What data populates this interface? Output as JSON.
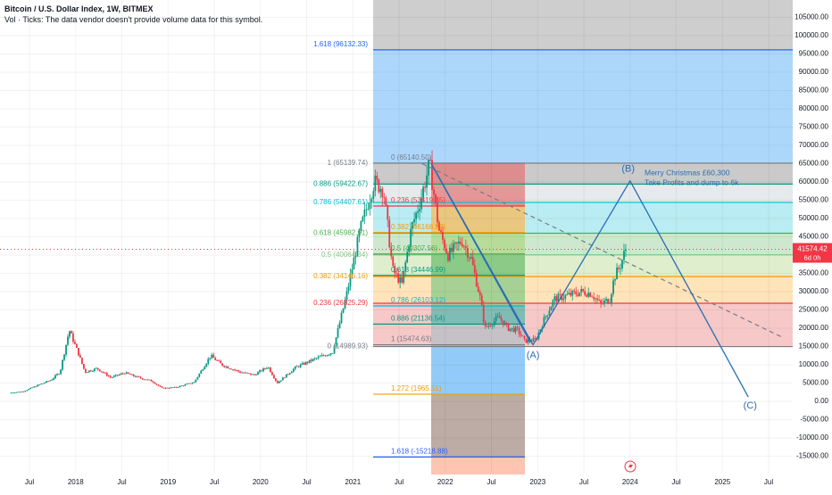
{
  "header": {
    "title": "Bitcoin / U.S. Dollar Index, 1W, BITMEX",
    "volume_note": "Vol · Ticks: The data vendor doesn't provide volume data for this symbol."
  },
  "price_badge": {
    "price": "41574.42",
    "countdown": "6d 0h",
    "color": "#f23645"
  },
  "annotations": {
    "b_label": "(B)",
    "a_label": "(A)",
    "c_label": "(C)",
    "note_line1": "Merry Christmas £60,300",
    "note_line2": "Take Profits and dump to 6k"
  },
  "fib_left": [
    {
      "label": "1.618 (96132.33)",
      "price": 96132.33,
      "color": "#2962ff"
    },
    {
      "label": "1 (65139.74)",
      "price": 65139.74,
      "color": "#787b86"
    },
    {
      "label": "0.886 (59422.67)",
      "price": 59422.67,
      "color": "#089981"
    },
    {
      "label": "0.786 (54407.61)",
      "price": 54407.61,
      "color": "#00bcd4"
    },
    {
      "label": "0.618 (45982.51)",
      "price": 45982.51,
      "color": "#4caf50"
    },
    {
      "label": "0.5 (40064.34)",
      "price": 40064.34,
      "color": "#81c784"
    },
    {
      "label": "0.382 (34146.16)",
      "price": 34146.16,
      "color": "#ff9800"
    },
    {
      "label": "0.236 (26825.29)",
      "price": 26825.29,
      "color": "#f23645"
    },
    {
      "label": "0 (14989.93)",
      "price": 14989.93,
      "color": "#787b86"
    }
  ],
  "fib_right": [
    {
      "label": "0 (65140.50)",
      "price": 65140.5,
      "color": "#787b86"
    },
    {
      "label": "0.236 (53419.35)",
      "price": 53419.35,
      "color": "#f23645"
    },
    {
      "label": "0.382 (46168.97)",
      "price": 46168.97,
      "color": "#ff9800"
    },
    {
      "label": "0.5 (40307.56)",
      "price": 40307.56,
      "color": "#4caf50"
    },
    {
      "label": "0.618 (34446.99)",
      "price": 34446.99,
      "color": "#089981"
    },
    {
      "label": "0.786 (26103.12)",
      "price": 26103.12,
      "color": "#00bcd4"
    },
    {
      "label": "0.886 (21136.54)",
      "price": 21136.54,
      "color": "#089981"
    },
    {
      "label": "1 (15474.63)",
      "price": 15474.63,
      "color": "#787b86"
    },
    {
      "label": "1.272 (1965.51)",
      "price": 1965.51,
      "color": "#ff9800"
    },
    {
      "label": "1.618 (-15218.88)",
      "price": -15218.88,
      "color": "#2962ff"
    }
  ],
  "chart_data": {
    "type": "candlestick",
    "title": "Bitcoin / U.S. Dollar Index, 1W, BITMEX",
    "ylim": [
      -18000,
      110000
    ],
    "y_ticks": [
      105000,
      100000,
      95000,
      90000,
      85000,
      80000,
      75000,
      70000,
      65000,
      60000,
      55000,
      50000,
      45000,
      40000,
      35000,
      30000,
      25000,
      20000,
      15000,
      10000,
      5000,
      0,
      -5000,
      -10000,
      -15000
    ],
    "y_tick_labels": [
      "105000.00",
      "100000.00",
      "95000.00",
      "90000.00",
      "85000.00",
      "80000.00",
      "75000.00",
      "70000.00",
      "65000.00",
      "60000.00",
      "55000.00",
      "50000.00",
      "45000.00",
      "40000.00",
      "35000.00",
      "30000.00",
      "25000.00",
      "20000.00",
      "15000.00",
      "10000.00",
      "5000.00",
      "0.00",
      "-5000.00",
      "-10000.00",
      "-15000.00"
    ],
    "x_range": [
      2017.3,
      2025.85
    ],
    "x_ticks": [
      {
        "t": 2017.5,
        "label": "Jul"
      },
      {
        "t": 2018.0,
        "label": "2018"
      },
      {
        "t": 2018.5,
        "label": "Jul"
      },
      {
        "t": 2019.0,
        "label": "2019"
      },
      {
        "t": 2019.5,
        "label": "Jul"
      },
      {
        "t": 2020.0,
        "label": "2020"
      },
      {
        "t": 2020.5,
        "label": "Jul"
      },
      {
        "t": 2021.0,
        "label": "2021"
      },
      {
        "t": 2021.5,
        "label": "Jul"
      },
      {
        "t": 2022.0,
        "label": "2022"
      },
      {
        "t": 2022.5,
        "label": "Jul"
      },
      {
        "t": 2023.0,
        "label": "2023"
      },
      {
        "t": 2023.5,
        "label": "Jul"
      },
      {
        "t": 2024.0,
        "label": "2024"
      },
      {
        "t": 2024.5,
        "label": "Jul"
      },
      {
        "t": 2025.0,
        "label": "2025"
      },
      {
        "t": 2025.5,
        "label": "Jul"
      }
    ],
    "price_path": [
      [
        2017.3,
        2300
      ],
      [
        2017.45,
        2700
      ],
      [
        2017.6,
        4300
      ],
      [
        2017.75,
        5800
      ],
      [
        2017.85,
        8000
      ],
      [
        2017.95,
        19500
      ],
      [
        2018.05,
        13000
      ],
      [
        2018.12,
        8000
      ],
      [
        2018.25,
        9000
      ],
      [
        2018.4,
        6500
      ],
      [
        2018.55,
        7800
      ],
      [
        2018.7,
        6500
      ],
      [
        2018.85,
        5500
      ],
      [
        2018.95,
        3600
      ],
      [
        2019.1,
        3800
      ],
      [
        2019.3,
        5200
      ],
      [
        2019.48,
        12500
      ],
      [
        2019.6,
        10000
      ],
      [
        2019.8,
        8000
      ],
      [
        2019.95,
        7200
      ],
      [
        2020.1,
        9500
      ],
      [
        2020.2,
        5000
      ],
      [
        2020.4,
        9300
      ],
      [
        2020.6,
        11500
      ],
      [
        2020.8,
        13500
      ],
      [
        2020.95,
        29000
      ],
      [
        2021.1,
        47000
      ],
      [
        2021.25,
        60000
      ],
      [
        2021.35,
        58000
      ],
      [
        2021.45,
        36000
      ],
      [
        2021.55,
        32000
      ],
      [
        2021.65,
        47000
      ],
      [
        2021.75,
        55000
      ],
      [
        2021.85,
        65000
      ],
      [
        2021.95,
        47000
      ],
      [
        2022.05,
        40000
      ],
      [
        2022.2,
        44000
      ],
      [
        2022.3,
        39000
      ],
      [
        2022.4,
        28000
      ],
      [
        2022.45,
        20000
      ],
      [
        2022.6,
        23000
      ],
      [
        2022.7,
        20000
      ],
      [
        2022.8,
        19500
      ],
      [
        2022.88,
        16500
      ],
      [
        2023.0,
        16800
      ],
      [
        2023.1,
        23000
      ],
      [
        2023.2,
        28000
      ],
      [
        2023.35,
        29000
      ],
      [
        2023.5,
        30000
      ],
      [
        2023.6,
        29500
      ],
      [
        2023.7,
        26500
      ],
      [
        2023.8,
        28000
      ],
      [
        2023.85,
        34000
      ],
      [
        2023.92,
        37500
      ],
      [
        2023.97,
        41574
      ]
    ],
    "fib_zones_right": [
      {
        "from": 65140.5,
        "to": 59422.67,
        "color": "#9e9e9e"
      },
      {
        "from": 59422.67,
        "to": 54407.61,
        "color": "#cfd8dc"
      },
      {
        "from": 54407.61,
        "to": 45982.51,
        "color": "#80deea"
      },
      {
        "from": 45982.51,
        "to": 40064.34,
        "color": "#a5d6a7"
      },
      {
        "from": 40064.34,
        "to": 34146.16,
        "color": "#c5e1a5"
      },
      {
        "from": 34146.16,
        "to": 26825.29,
        "color": "#ffcc80"
      },
      {
        "from": 26825.29,
        "to": 14989.93,
        "color": "#ef9a9a"
      }
    ],
    "fib_zones_mid": [
      {
        "from": 65140.5,
        "to": 53419.35,
        "color": "#e57373"
      },
      {
        "from": 53419.35,
        "to": 46168.97,
        "color": "#ffb74d"
      },
      {
        "from": 46168.97,
        "to": 40307.56,
        "color": "#aed581"
      },
      {
        "from": 40307.56,
        "to": 34446.99,
        "color": "#66bb6a"
      },
      {
        "from": 34446.99,
        "to": 26103.12,
        "color": "#81c784"
      },
      {
        "from": 26103.12,
        "to": 21136.54,
        "color": "#4db6ac"
      },
      {
        "from": 21136.54,
        "to": 15474.63,
        "color": "#b0bec5"
      },
      {
        "from": 15474.63,
        "to": 1965.51,
        "color": "#64b5f6"
      },
      {
        "from": 1965.51,
        "to": -15218.88,
        "color": "#a1887f"
      },
      {
        "from": -15218.88,
        "to": -20000,
        "color": "#ffab91"
      }
    ],
    "elliott_wave": [
      [
        2021.85,
        65000
      ],
      [
        2022.95,
        15474
      ],
      [
        2024.0,
        60300
      ],
      [
        2025.28,
        1200
      ]
    ],
    "dashed_trend": [
      [
        2021.75,
        65000
      ],
      [
        2025.65,
        17500
      ]
    ]
  }
}
